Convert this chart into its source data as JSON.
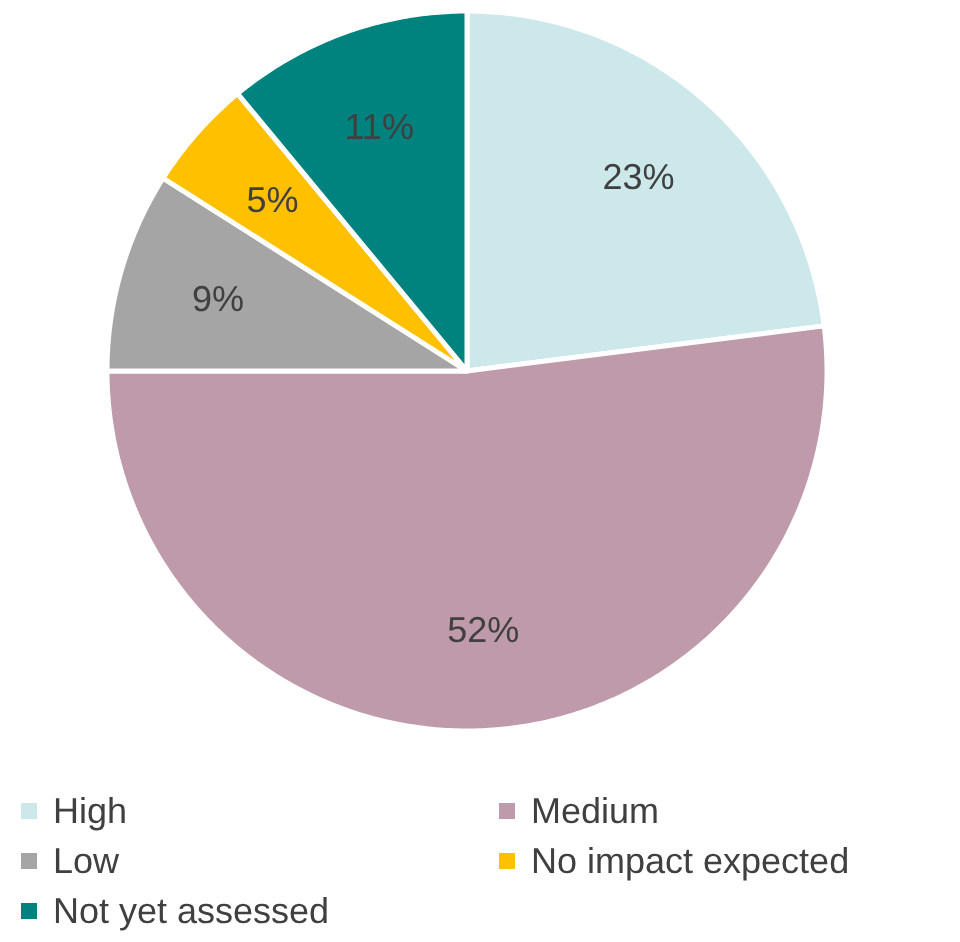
{
  "chart_data": {
    "type": "pie",
    "categories": [
      "High",
      "Medium",
      "Low",
      "No impact expected",
      "Not yet assessed"
    ],
    "values": [
      23,
      52,
      9,
      5,
      11
    ],
    "colors": [
      "#cde8ea",
      "#bf9aab",
      "#a5a5a5",
      "#ffc000",
      "#00827f"
    ],
    "value_labels": [
      "23%",
      "52%",
      "9%",
      "5%",
      "11%"
    ],
    "legend": "bottom"
  }
}
